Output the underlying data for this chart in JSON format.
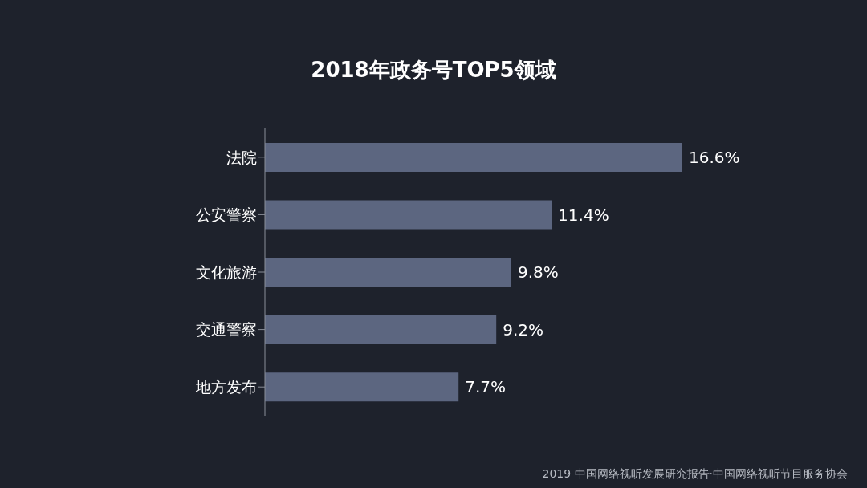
{
  "chart_data": {
    "type": "bar",
    "orientation": "horizontal",
    "title": "2018年政务号TOP5领域",
    "categories": [
      "法院",
      "公安警察",
      "文化旅游",
      "交通警察",
      "地方发布"
    ],
    "values": [
      16.6,
      11.4,
      9.8,
      9.2,
      7.7
    ],
    "value_labels": [
      "16.6%",
      "11.4%",
      "9.8%",
      "9.2%",
      "7.7%"
    ],
    "color": "#5c6680",
    "annotations": [
      "2019 中国网络视听发展研究报告·中国网络视听节目服务协会"
    ],
    "grid": false,
    "legend": false
  }
}
